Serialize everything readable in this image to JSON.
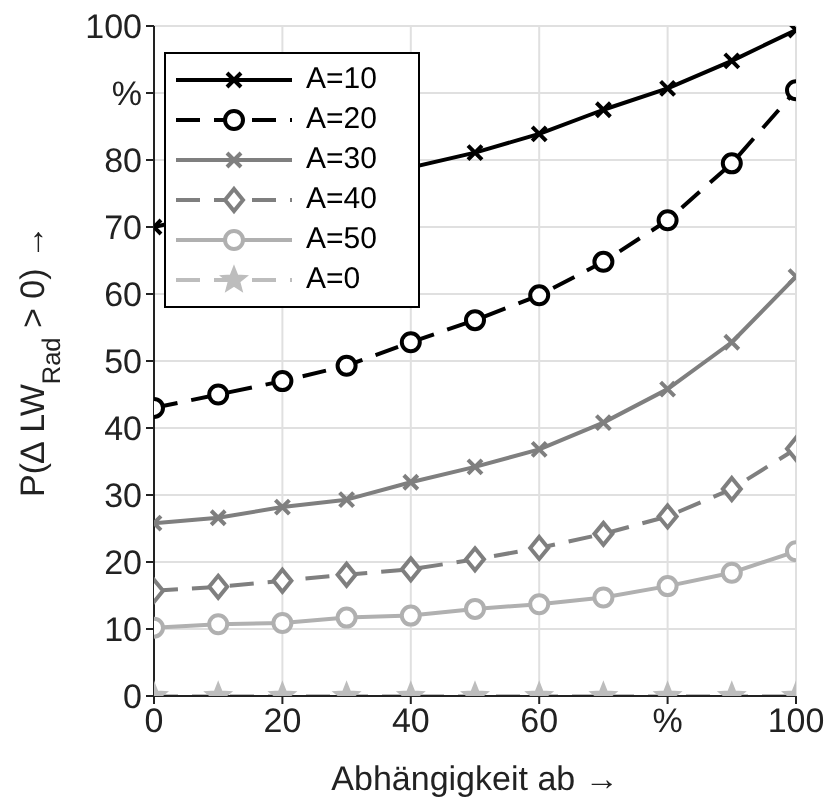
{
  "chart_data": {
    "type": "line",
    "xlabel": "Abhängigkeit ab →",
    "ylabel": "P(∆ LW$_{Rad}$ > 0) →",
    "x": [
      0,
      10,
      20,
      30,
      40,
      50,
      60,
      70,
      80,
      90,
      100
    ],
    "xlim": [
      0,
      100
    ],
    "xticks": [
      0,
      20,
      40,
      60,
      {
        "value": 80,
        "label": "%"
      },
      100
    ],
    "ylim": [
      0,
      100
    ],
    "yticks": [
      0,
      10,
      20,
      30,
      40,
      50,
      60,
      70,
      80,
      {
        "value": 90,
        "label": "%"
      },
      100
    ],
    "grid": true,
    "legend": "top left",
    "series": [
      {
        "name": "A=10",
        "color": "#000000",
        "marker": "cross",
        "line_style": "solid",
        "values": [
          70,
          null,
          null,
          null,
          null,
          81.1,
          83.9,
          87.5,
          90.7,
          94.8,
          99.4
        ]
      },
      {
        "name": "A=20",
        "color": "#000000",
        "marker": "circle",
        "line_style": "dashed",
        "values": [
          43,
          45,
          47,
          49.3,
          52.8,
          56.1,
          59.8,
          64.8,
          71,
          79.5,
          90.4
        ]
      },
      {
        "name": "A=30",
        "color": "#7f7f7f",
        "marker": "cross",
        "line_style": "solid",
        "values": [
          25.8,
          26.6,
          28.2,
          29.3,
          31.9,
          34.2,
          36.8,
          40.8,
          45.8,
          52.8,
          62.6
        ]
      },
      {
        "name": "A=40",
        "color": "#7f7f7f",
        "marker": "diamond",
        "line_style": "dashed",
        "values": [
          15.7,
          16.3,
          17.2,
          18.1,
          18.9,
          20.4,
          22.1,
          24.2,
          26.8,
          30.9,
          36.9
        ]
      },
      {
        "name": "A=50",
        "color": "#b0b0b0",
        "marker": "circle",
        "line_style": "solid",
        "values": [
          10.2,
          10.7,
          10.9,
          11.7,
          12,
          13,
          13.7,
          14.7,
          16.4,
          18.4,
          21.6
        ]
      },
      {
        "name": "A=0",
        "color": "#bdbdbd",
        "marker": "star",
        "line_style": "dashed",
        "values": [
          0,
          0,
          0,
          0,
          0,
          0,
          0,
          0,
          0,
          0,
          0
        ]
      }
    ]
  }
}
